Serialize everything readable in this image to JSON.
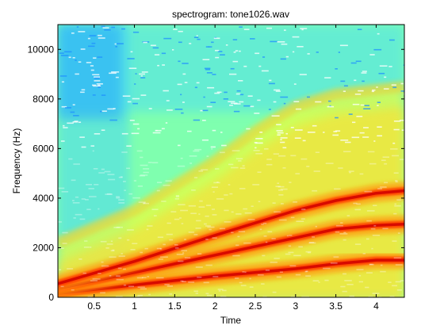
{
  "chart_data": {
    "type": "heatmap",
    "title": "spectrogram: tone1026.wav",
    "xlabel": "Time",
    "ylabel": "Frequency (Hz)",
    "xlim": [
      0.05,
      4.35
    ],
    "ylim": [
      0,
      11000
    ],
    "x_ticks": [
      0.5,
      1,
      1.5,
      2,
      2.5,
      3,
      3.5,
      4
    ],
    "x_tick_labels": [
      "0.5",
      "1",
      "1.5",
      "2",
      "2.5",
      "3",
      "3.5",
      "4"
    ],
    "y_ticks": [
      0,
      2000,
      4000,
      6000,
      8000,
      10000
    ],
    "y_tick_labels": [
      "0",
      "2000",
      "4000",
      "6000",
      "8000",
      "10000"
    ],
    "grid": false,
    "colormap": "jet",
    "background_level_color": "#7fffaf",
    "harmonics": [
      {
        "harmonic": 1,
        "points": [
          [
            0.05,
            150
          ],
          [
            1.0,
            500
          ],
          [
            2.0,
            850
          ],
          [
            3.0,
            1150
          ],
          [
            3.5,
            1350
          ],
          [
            4.0,
            1500
          ],
          [
            4.35,
            1500
          ]
        ]
      },
      {
        "harmonic": 2,
        "points": [
          [
            0.05,
            350
          ],
          [
            1.0,
            1000
          ],
          [
            2.0,
            1700
          ],
          [
            3.0,
            2400
          ],
          [
            3.5,
            2750
          ],
          [
            4.0,
            2900
          ],
          [
            4.35,
            2950
          ]
        ]
      },
      {
        "harmonic": 3,
        "points": [
          [
            0.05,
            550
          ],
          [
            1.0,
            1450
          ],
          [
            2.0,
            2500
          ],
          [
            3.0,
            3500
          ],
          [
            3.5,
            3900
          ],
          [
            4.0,
            4200
          ],
          [
            4.35,
            4300
          ]
        ]
      }
    ],
    "broadband_band": {
      "points": [
        [
          0.05,
          2200
        ],
        [
          1.0,
          3500
        ],
        [
          2.0,
          5500
        ],
        [
          2.5,
          6700
        ],
        [
          3.0,
          7700
        ],
        [
          3.5,
          8200
        ],
        [
          4.35,
          8500
        ]
      ]
    }
  }
}
